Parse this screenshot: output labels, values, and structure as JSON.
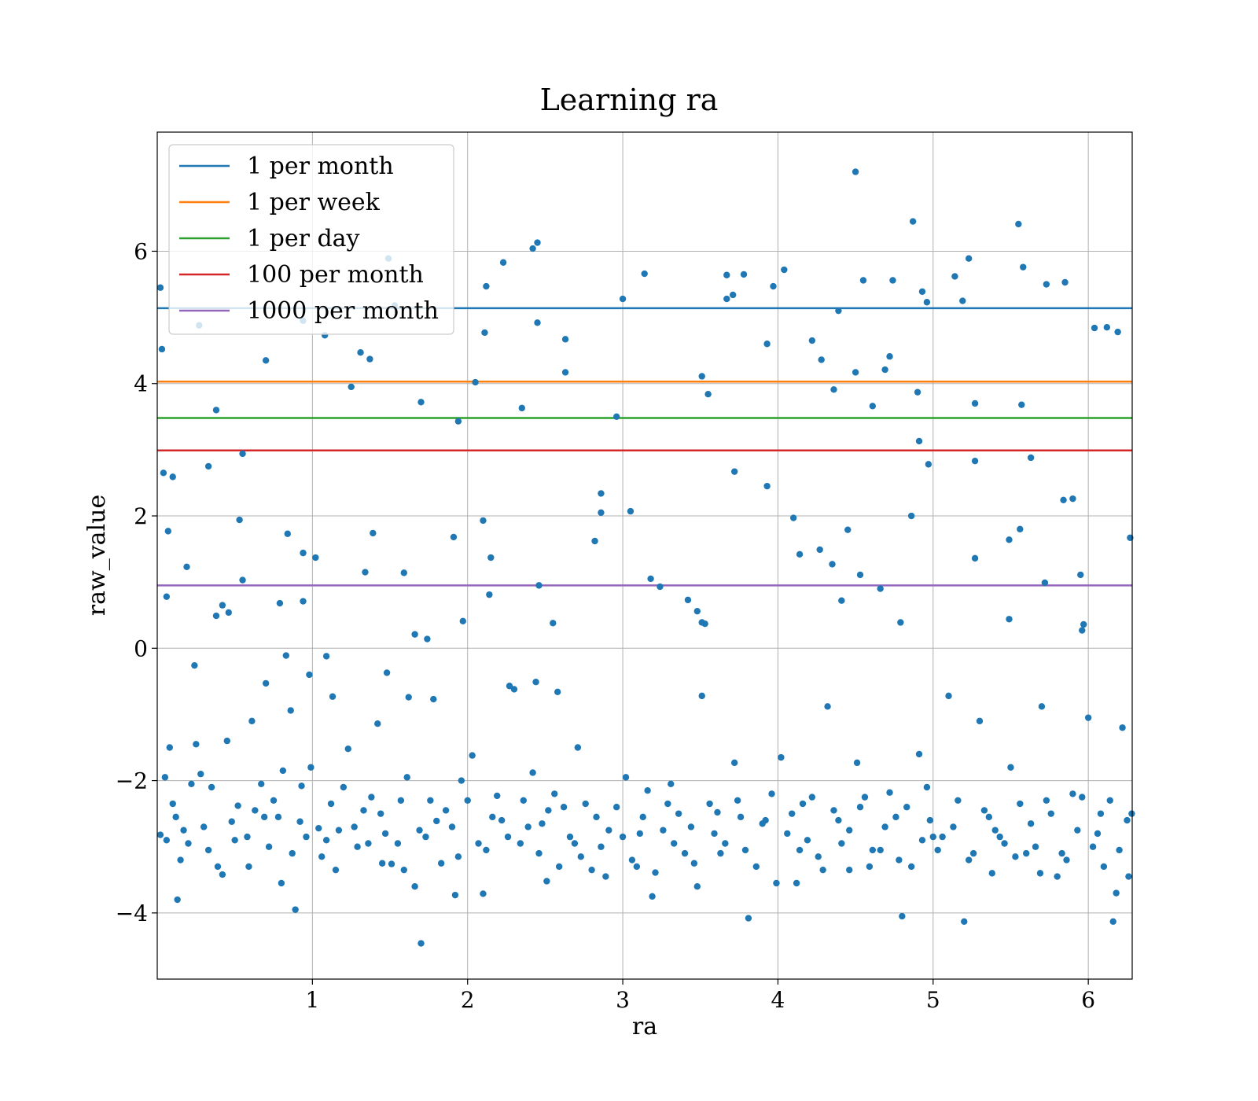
{
  "chart_data": {
    "type": "scatter",
    "title": "Learning ra",
    "xlabel": "ra",
    "ylabel": "raw_value",
    "xlim": [
      0.0,
      6.283
    ],
    "ylim": [
      -5.0,
      7.8
    ],
    "xticks": [
      1,
      2,
      3,
      4,
      5,
      6
    ],
    "yticks": [
      -4,
      -2,
      0,
      2,
      4,
      6
    ],
    "xtick_labels": [
      "1",
      "2",
      "3",
      "4",
      "5",
      "6"
    ],
    "ytick_labels": [
      "−4",
      "−2",
      "0",
      "2",
      "4",
      "6"
    ],
    "grid": true,
    "legend_position": "top-left",
    "scatter_color": "#1f77b4",
    "hlines": [
      {
        "name": "1 per month",
        "y": 5.14,
        "color": "#1f77b4"
      },
      {
        "name": "1 per week",
        "y": 4.03,
        "color": "#ff7f0e"
      },
      {
        "name": "1 per day",
        "y": 3.48,
        "color": "#2ca02c"
      },
      {
        "name": "100 per month",
        "y": 2.99,
        "color": "#d62728"
      },
      {
        "name": "1000 per month",
        "y": 0.95,
        "color": "#9467bd"
      }
    ],
    "points": [
      [
        0.02,
        5.45
      ],
      [
        0.03,
        4.52
      ],
      [
        0.04,
        2.65
      ],
      [
        0.06,
        0.78
      ],
      [
        0.07,
        1.77
      ],
      [
        0.1,
        2.59
      ],
      [
        0.19,
        1.23
      ],
      [
        0.24,
        -0.26
      ],
      [
        0.27,
        4.88
      ],
      [
        0.33,
        2.75
      ],
      [
        0.38,
        3.6
      ],
      [
        0.38,
        0.49
      ],
      [
        0.42,
        0.65
      ],
      [
        0.46,
        0.54
      ],
      [
        0.53,
        1.94
      ],
      [
        0.55,
        1.03
      ],
      [
        0.55,
        2.94
      ],
      [
        0.7,
        4.35
      ],
      [
        0.7,
        -0.53
      ],
      [
        0.79,
        0.68
      ],
      [
        0.83,
        -0.11
      ],
      [
        0.84,
        1.73
      ],
      [
        0.86,
        -0.94
      ],
      [
        0.94,
        0.71
      ],
      [
        0.94,
        1.44
      ],
      [
        0.94,
        4.95
      ],
      [
        0.98,
        -0.4
      ],
      [
        1.02,
        1.37
      ],
      [
        1.08,
        4.73
      ],
      [
        1.09,
        -0.12
      ],
      [
        1.13,
        -0.73
      ],
      [
        1.25,
        3.95
      ],
      [
        1.31,
        4.47
      ],
      [
        1.34,
        1.15
      ],
      [
        1.37,
        4.37
      ],
      [
        1.39,
        1.74
      ],
      [
        1.48,
        -0.37
      ],
      [
        1.49,
        5.89
      ],
      [
        1.53,
        5.18
      ],
      [
        1.59,
        1.14
      ],
      [
        1.62,
        -0.74
      ],
      [
        1.66,
        0.21
      ],
      [
        1.7,
        3.72
      ],
      [
        1.74,
        0.14
      ],
      [
        1.78,
        -0.77
      ],
      [
        1.91,
        1.68
      ],
      [
        1.94,
        3.43
      ],
      [
        1.97,
        0.41
      ],
      [
        2.05,
        4.02
      ],
      [
        2.1,
        1.93
      ],
      [
        2.11,
        4.77
      ],
      [
        2.12,
        5.47
      ],
      [
        2.14,
        0.81
      ],
      [
        2.15,
        1.37
      ],
      [
        2.23,
        5.83
      ],
      [
        2.27,
        -0.57
      ],
      [
        2.35,
        3.63
      ],
      [
        2.42,
        6.04
      ],
      [
        2.44,
        -0.51
      ],
      [
        2.45,
        6.13
      ],
      [
        2.45,
        4.92
      ],
      [
        2.46,
        0.95
      ],
      [
        2.55,
        0.38
      ],
      [
        2.58,
        -0.66
      ],
      [
        2.63,
        4.67
      ],
      [
        2.63,
        4.17
      ],
      [
        2.82,
        1.62
      ],
      [
        2.86,
        2.34
      ],
      [
        2.86,
        2.05
      ],
      [
        2.96,
        3.5
      ],
      [
        3.0,
        5.28
      ],
      [
        3.05,
        2.07
      ],
      [
        3.14,
        5.66
      ],
      [
        3.18,
        1.05
      ],
      [
        3.24,
        0.93
      ],
      [
        3.42,
        0.73
      ],
      [
        3.48,
        0.56
      ],
      [
        3.51,
        4.11
      ],
      [
        3.51,
        0.39
      ],
      [
        3.53,
        0.37
      ],
      [
        3.55,
        3.84
      ],
      [
        3.67,
        5.64
      ],
      [
        3.67,
        5.28
      ],
      [
        3.71,
        5.34
      ],
      [
        3.72,
        2.67
      ],
      [
        3.78,
        5.65
      ],
      [
        3.93,
        2.45
      ],
      [
        3.93,
        4.6
      ],
      [
        3.97,
        5.47
      ],
      [
        4.04,
        5.72
      ],
      [
        4.1,
        1.97
      ],
      [
        4.14,
        1.42
      ],
      [
        4.22,
        4.65
      ],
      [
        4.27,
        1.49
      ],
      [
        4.28,
        4.36
      ],
      [
        4.35,
        1.27
      ],
      [
        4.36,
        3.91
      ],
      [
        4.39,
        5.1
      ],
      [
        4.41,
        0.72
      ],
      [
        4.45,
        1.79
      ],
      [
        4.5,
        4.17
      ],
      [
        4.5,
        7.2
      ],
      [
        4.53,
        1.11
      ],
      [
        4.55,
        5.56
      ],
      [
        4.61,
        3.66
      ],
      [
        4.66,
        0.9
      ],
      [
        4.69,
        4.21
      ],
      [
        4.72,
        4.41
      ],
      [
        4.74,
        5.56
      ],
      [
        4.79,
        0.39
      ],
      [
        4.87,
        6.45
      ],
      [
        4.86,
        2.0
      ],
      [
        4.9,
        3.87
      ],
      [
        4.91,
        3.13
      ],
      [
        4.93,
        5.39
      ],
      [
        4.96,
        5.23
      ],
      [
        4.97,
        2.78
      ],
      [
        5.14,
        5.62
      ],
      [
        5.19,
        5.25
      ],
      [
        5.23,
        5.89
      ],
      [
        5.27,
        2.83
      ],
      [
        5.27,
        1.36
      ],
      [
        5.27,
        3.7
      ],
      [
        5.49,
        0.44
      ],
      [
        5.49,
        1.64
      ],
      [
        5.55,
        6.41
      ],
      [
        5.56,
        1.8
      ],
      [
        5.57,
        3.68
      ],
      [
        5.58,
        5.76
      ],
      [
        5.63,
        2.88
      ],
      [
        5.72,
        0.99
      ],
      [
        5.73,
        5.5
      ],
      [
        5.85,
        5.53
      ],
      [
        5.84,
        2.24
      ],
      [
        5.9,
        2.26
      ],
      [
        5.95,
        1.11
      ],
      [
        5.96,
        0.27
      ],
      [
        5.97,
        0.36
      ],
      [
        6.04,
        4.84
      ],
      [
        6.12,
        4.85
      ],
      [
        6.19,
        4.78
      ],
      [
        6.27,
        1.67
      ],
      [
        0.08,
        -1.5
      ],
      [
        0.12,
        -2.55
      ],
      [
        0.22,
        -2.05
      ],
      [
        0.25,
        -1.45
      ],
      [
        0.33,
        -3.05
      ],
      [
        0.45,
        -1.4
      ],
      [
        0.52,
        -2.38
      ],
      [
        0.61,
        -1.1
      ],
      [
        0.72,
        -3.0
      ],
      [
        0.81,
        -1.85
      ],
      [
        0.89,
        -3.95
      ],
      [
        0.93,
        -2.08
      ],
      [
        1.04,
        -2.72
      ],
      [
        1.15,
        -3.35
      ],
      [
        1.23,
        -1.52
      ],
      [
        1.33,
        -2.45
      ],
      [
        1.42,
        -1.14
      ],
      [
        1.51,
        -3.26
      ],
      [
        1.61,
        -1.95
      ],
      [
        1.7,
        -4.46
      ],
      [
        1.8,
        -2.61
      ],
      [
        1.92,
        -3.73
      ],
      [
        2.03,
        -1.62
      ],
      [
        2.1,
        -3.71
      ],
      [
        2.19,
        -2.23
      ],
      [
        2.3,
        -0.62
      ],
      [
        2.42,
        -1.88
      ],
      [
        2.51,
        -3.52
      ],
      [
        2.62,
        -2.4
      ],
      [
        2.71,
        -1.5
      ],
      [
        2.8,
        -3.35
      ],
      [
        2.91,
        -2.75
      ],
      [
        3.02,
        -1.95
      ],
      [
        3.11,
        -2.8
      ],
      [
        3.21,
        -3.39
      ],
      [
        3.31,
        -2.05
      ],
      [
        3.4,
        -3.1
      ],
      [
        3.51,
        -0.72
      ],
      [
        3.61,
        -2.48
      ],
      [
        3.72,
        -1.73
      ],
      [
        3.81,
        -4.08
      ],
      [
        3.92,
        -2.6
      ],
      [
        4.02,
        -1.65
      ],
      [
        4.12,
        -3.55
      ],
      [
        4.22,
        -2.25
      ],
      [
        4.32,
        -0.88
      ],
      [
        4.41,
        -2.95
      ],
      [
        4.51,
        -1.73
      ],
      [
        4.61,
        -3.05
      ],
      [
        4.72,
        -2.18
      ],
      [
        4.8,
        -4.05
      ],
      [
        4.91,
        -1.6
      ],
      [
        5.0,
        -2.85
      ],
      [
        5.1,
        -0.72
      ],
      [
        5.2,
        -4.13
      ],
      [
        5.3,
        -1.1
      ],
      [
        5.4,
        -2.75
      ],
      [
        5.5,
        -1.8
      ],
      [
        5.6,
        -3.1
      ],
      [
        5.7,
        -0.88
      ],
      [
        5.8,
        -3.45
      ],
      [
        5.9,
        -2.2
      ],
      [
        6.0,
        -1.05
      ],
      [
        6.1,
        -3.3
      ],
      [
        6.16,
        -4.13
      ],
      [
        6.22,
        -1.2
      ],
      [
        6.26,
        -3.45
      ],
      [
        6.28,
        -2.5
      ],
      [
        0.02,
        -2.82
      ],
      [
        0.05,
        -1.95
      ],
      [
        0.15,
        -3.2
      ],
      [
        0.3,
        -2.7
      ],
      [
        0.42,
        -3.42
      ],
      [
        0.58,
        -2.85
      ],
      [
        0.67,
        -2.05
      ],
      [
        0.78,
        -2.55
      ],
      [
        0.87,
        -3.1
      ],
      [
        0.99,
        -1.8
      ],
      [
        1.09,
        -2.9
      ],
      [
        1.2,
        -2.1
      ],
      [
        1.29,
        -3.0
      ],
      [
        1.38,
        -2.25
      ],
      [
        1.47,
        -2.8
      ],
      [
        1.57,
        -2.3
      ],
      [
        1.66,
        -3.6
      ],
      [
        1.76,
        -2.3
      ],
      [
        1.86,
        -2.45
      ],
      [
        1.96,
        -2.0
      ],
      [
        2.07,
        -2.95
      ],
      [
        2.16,
        -2.55
      ],
      [
        2.26,
        -2.85
      ],
      [
        2.36,
        -2.3
      ],
      [
        2.46,
        -3.1
      ],
      [
        2.56,
        -2.2
      ],
      [
        2.66,
        -2.85
      ],
      [
        2.76,
        -2.35
      ],
      [
        2.86,
        -3.0
      ],
      [
        2.96,
        -2.4
      ],
      [
        3.06,
        -3.2
      ],
      [
        3.16,
        -2.15
      ],
      [
        3.26,
        -2.75
      ],
      [
        3.36,
        -2.5
      ],
      [
        3.46,
        -3.25
      ],
      [
        3.56,
        -2.35
      ],
      [
        3.66,
        -2.95
      ],
      [
        3.76,
        -2.55
      ],
      [
        3.86,
        -3.3
      ],
      [
        3.96,
        -2.2
      ],
      [
        4.06,
        -2.8
      ],
      [
        4.16,
        -2.35
      ],
      [
        4.26,
        -3.15
      ],
      [
        4.36,
        -2.45
      ],
      [
        4.46,
        -2.75
      ],
      [
        4.56,
        -2.25
      ],
      [
        4.66,
        -3.05
      ],
      [
        4.76,
        -2.55
      ],
      [
        4.86,
        -3.3
      ],
      [
        4.96,
        -2.1
      ],
      [
        5.06,
        -2.85
      ],
      [
        5.16,
        -2.3
      ],
      [
        5.26,
        -3.1
      ],
      [
        5.36,
        -2.55
      ],
      [
        5.46,
        -2.95
      ],
      [
        5.56,
        -2.35
      ],
      [
        5.66,
        -3.0
      ],
      [
        5.76,
        -2.5
      ],
      [
        5.86,
        -3.2
      ],
      [
        5.96,
        -2.25
      ],
      [
        6.06,
        -2.8
      ],
      [
        6.14,
        -2.3
      ],
      [
        6.2,
        -3.05
      ],
      [
        6.25,
        -2.6
      ],
      [
        0.1,
        -2.35
      ],
      [
        0.2,
        -2.95
      ],
      [
        0.35,
        -2.1
      ],
      [
        0.48,
        -2.62
      ],
      [
        0.63,
        -2.45
      ],
      [
        0.75,
        -2.3
      ],
      [
        0.92,
        -2.62
      ],
      [
        1.12,
        -2.35
      ],
      [
        1.27,
        -2.7
      ],
      [
        1.44,
        -2.5
      ],
      [
        1.55,
        -2.95
      ],
      [
        1.73,
        -2.85
      ],
      [
        1.9,
        -2.7
      ],
      [
        2.0,
        -2.3
      ],
      [
        2.22,
        -2.6
      ],
      [
        2.39,
        -2.7
      ],
      [
        2.52,
        -2.45
      ],
      [
        2.69,
        -2.95
      ],
      [
        2.83,
        -2.55
      ],
      [
        3.0,
        -2.85
      ],
      [
        3.13,
        -2.55
      ],
      [
        3.29,
        -2.35
      ],
      [
        3.44,
        -2.7
      ],
      [
        3.59,
        -2.8
      ],
      [
        3.74,
        -2.3
      ],
      [
        3.9,
        -2.65
      ],
      [
        4.09,
        -2.5
      ],
      [
        4.19,
        -2.9
      ],
      [
        4.39,
        -2.6
      ],
      [
        4.53,
        -2.4
      ],
      [
        4.69,
        -2.7
      ],
      [
        4.83,
        -2.4
      ],
      [
        4.98,
        -2.6
      ],
      [
        5.13,
        -2.7
      ],
      [
        5.33,
        -2.45
      ],
      [
        5.43,
        -2.85
      ],
      [
        5.63,
        -2.65
      ],
      [
        5.73,
        -2.3
      ],
      [
        5.93,
        -2.75
      ],
      [
        6.08,
        -2.5
      ],
      [
        0.06,
        -2.9
      ],
      [
        0.13,
        -3.8
      ],
      [
        0.17,
        -2.75
      ],
      [
        0.28,
        -1.9
      ],
      [
        0.39,
        -3.3
      ],
      [
        0.5,
        -2.9
      ],
      [
        0.59,
        -3.3
      ],
      [
        0.69,
        -2.55
      ],
      [
        0.8,
        -3.55
      ],
      [
        0.96,
        -2.85
      ],
      [
        1.06,
        -3.15
      ],
      [
        1.17,
        -2.75
      ],
      [
        1.36,
        -2.95
      ],
      [
        1.45,
        -3.25
      ],
      [
        1.59,
        -3.35
      ],
      [
        1.69,
        -2.75
      ],
      [
        1.83,
        -3.25
      ],
      [
        1.94,
        -3.15
      ],
      [
        2.12,
        -3.05
      ],
      [
        2.34,
        -2.95
      ],
      [
        2.48,
        -2.65
      ],
      [
        2.59,
        -3.3
      ],
      [
        2.73,
        -3.15
      ],
      [
        2.89,
        -3.45
      ],
      [
        3.09,
        -3.3
      ],
      [
        3.19,
        -3.75
      ],
      [
        3.33,
        -2.95
      ],
      [
        3.48,
        -3.6
      ],
      [
        3.63,
        -3.1
      ],
      [
        3.79,
        -3.05
      ],
      [
        3.99,
        -3.55
      ],
      [
        4.14,
        -3.05
      ],
      [
        4.29,
        -3.35
      ],
      [
        4.46,
        -3.35
      ],
      [
        4.59,
        -3.3
      ],
      [
        4.78,
        -3.2
      ],
      [
        4.93,
        -2.9
      ],
      [
        5.03,
        -3.05
      ],
      [
        5.23,
        -3.2
      ],
      [
        5.38,
        -3.4
      ],
      [
        5.53,
        -3.15
      ],
      [
        5.69,
        -3.4
      ],
      [
        5.83,
        -3.1
      ],
      [
        6.03,
        -3.0
      ],
      [
        6.18,
        -3.7
      ]
    ]
  }
}
